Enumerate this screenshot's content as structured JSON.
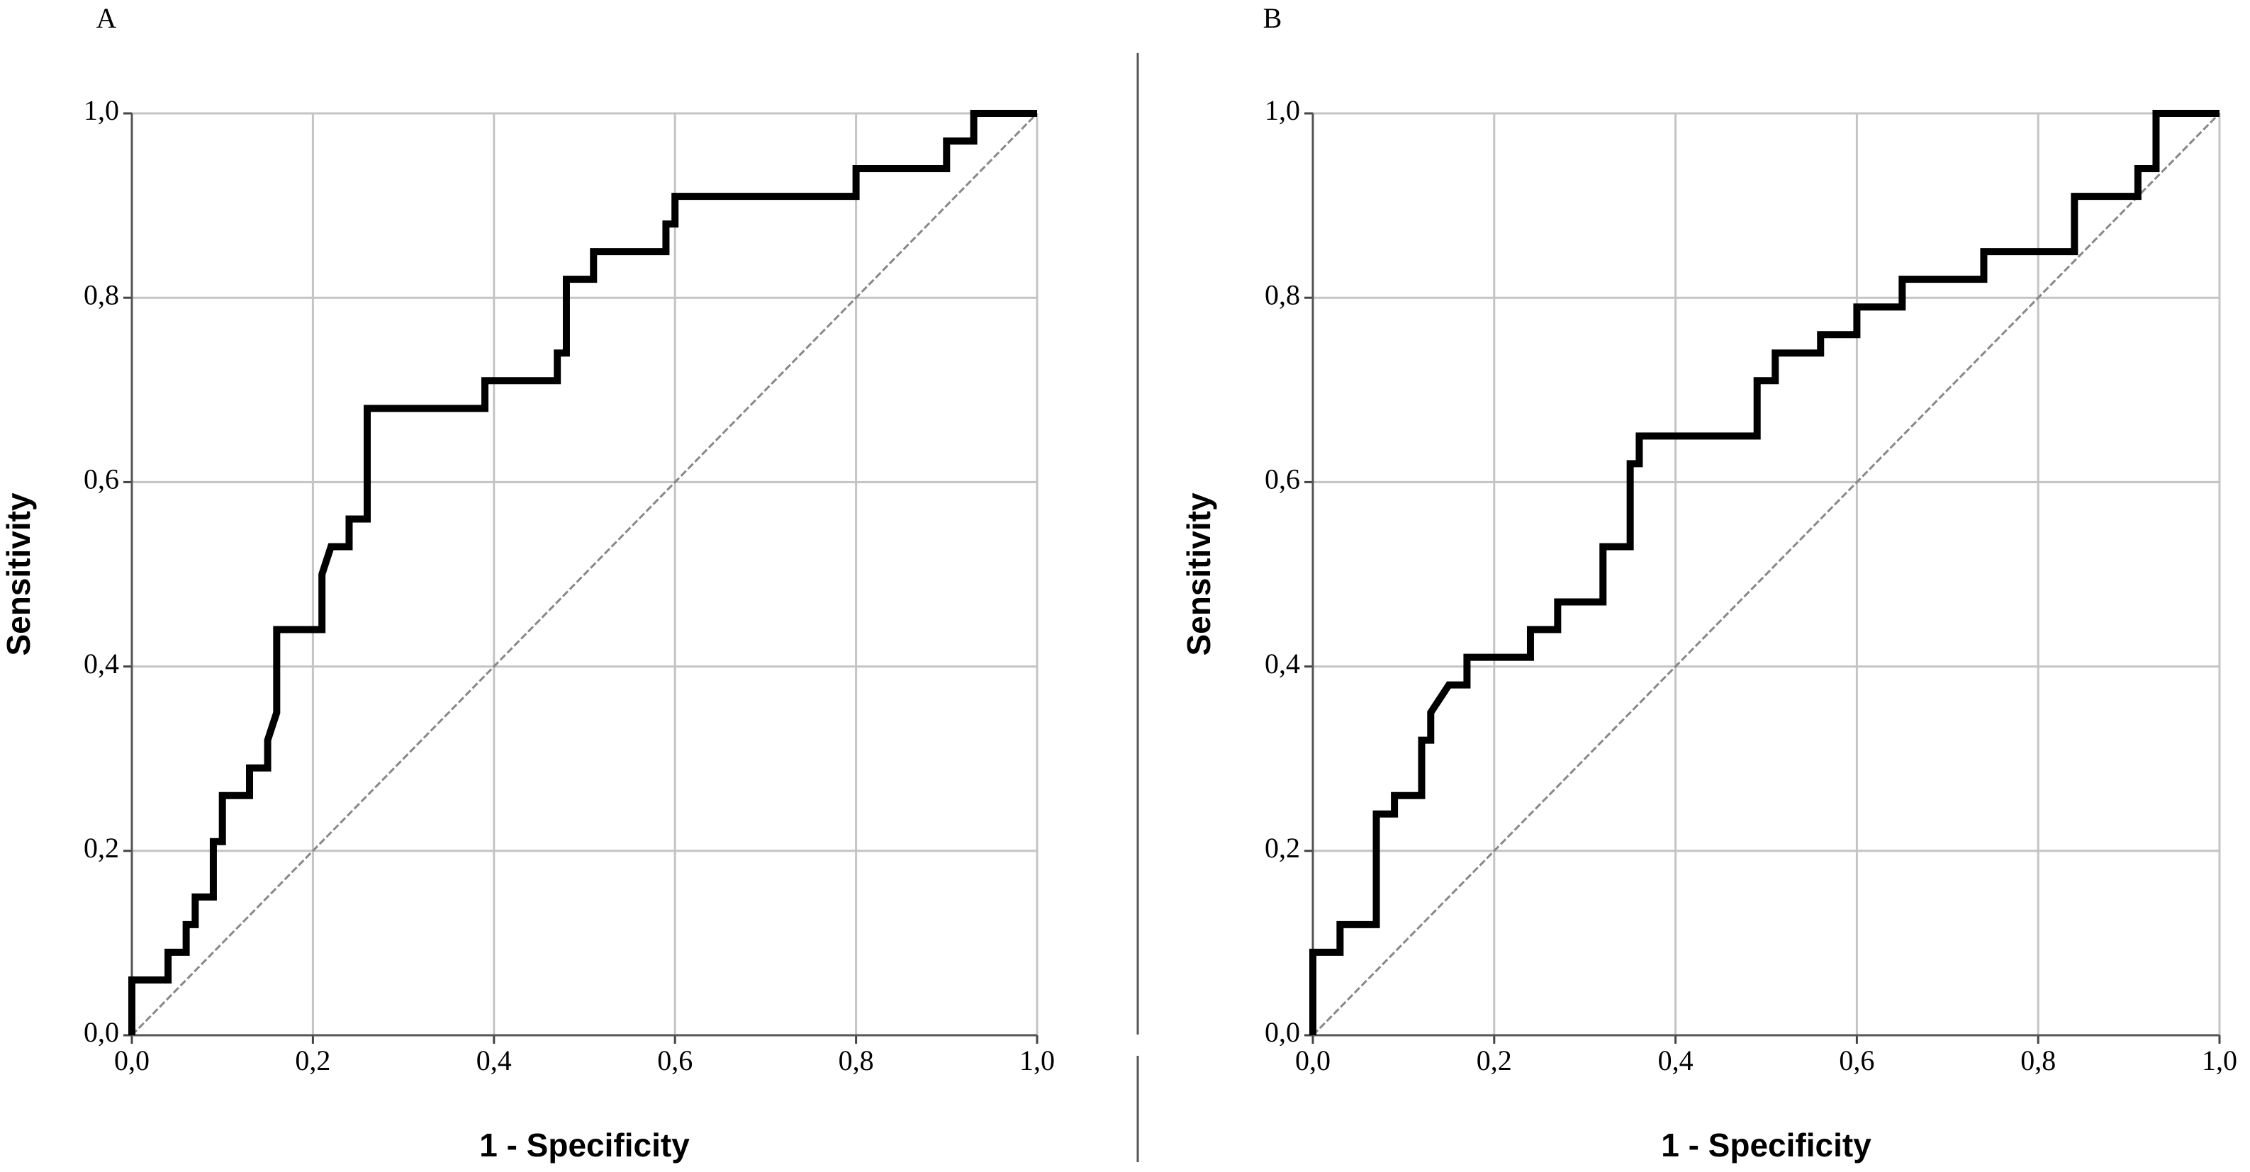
{
  "chart_data": [
    {
      "type": "line",
      "title": "A",
      "x_label": "1 - Specificity",
      "y_label": "Sensitivity",
      "x": [
        0,
        0,
        0.04,
        0.04,
        0.06,
        0.06,
        0.07,
        0.07,
        0.09,
        0.09,
        0.1,
        0.1,
        0.13,
        0.13,
        0.15,
        0.15,
        0.16,
        0.16,
        0.21,
        0.21,
        0.22,
        0.24,
        0.24,
        0.26,
        0.26,
        0.39,
        0.39,
        0.47,
        0.47,
        0.48,
        0.48,
        0.51,
        0.51,
        0.59,
        0.59,
        0.6,
        0.6,
        0.8,
        0.8,
        0.9,
        0.9,
        0.93,
        0.93,
        1
      ],
      "series": [
        {
          "color": "#000000",
          "values": [
            0,
            0.06,
            0.06,
            0.09,
            0.09,
            0.12,
            0.12,
            0.15,
            0.15,
            0.21,
            0.21,
            0.26,
            0.26,
            0.29,
            0.29,
            0.32,
            0.35,
            0.44,
            0.44,
            0.5,
            0.53,
            0.53,
            0.56,
            0.56,
            0.68,
            0.68,
            0.71,
            0.71,
            0.74,
            0.74,
            0.82,
            0.82,
            0.85,
            0.85,
            0.88,
            0.88,
            0.91,
            0.91,
            0.94,
            0.94,
            0.97,
            0.97,
            1,
            1
          ]
        }
      ],
      "xlim": [
        0,
        1
      ],
      "ylim": [
        0,
        1
      ],
      "xticks": [
        {
          "value": 0,
          "label": "0,0"
        },
        {
          "value": 0.2,
          "label": "0,2"
        },
        {
          "value": 0.4,
          "label": "0,4"
        },
        {
          "value": 0.6,
          "label": "0,6"
        },
        {
          "value": 0.8,
          "label": "0,8"
        },
        {
          "value": 1,
          "label": "1,0"
        }
      ],
      "yticks": [
        {
          "value": 0,
          "label": "0,0"
        },
        {
          "value": 0.2,
          "label": "0,2"
        },
        {
          "value": 0.4,
          "label": "0,4"
        },
        {
          "value": 0.6,
          "label": "0,6"
        },
        {
          "value": 0.8,
          "label": "0,8"
        },
        {
          "value": 1,
          "label": "1,0"
        }
      ],
      "grid": true,
      "diagonal": true
    },
    {
      "type": "line",
      "title": "B",
      "x_label": "1 - Specificity",
      "y_label": "Sensitivity",
      "x": [
        0,
        0,
        0.03,
        0.03,
        0.07,
        0.07,
        0.09,
        0.09,
        0.12,
        0.12,
        0.13,
        0.13,
        0.15,
        0.17,
        0.17,
        0.24,
        0.24,
        0.27,
        0.27,
        0.32,
        0.32,
        0.35,
        0.35,
        0.36,
        0.36,
        0.49,
        0.49,
        0.51,
        0.51,
        0.56,
        0.56,
        0.6,
        0.6,
        0.65,
        0.65,
        0.74,
        0.74,
        0.84,
        0.84,
        0.91,
        0.91,
        0.93,
        0.93,
        1
      ],
      "series": [
        {
          "color": "#000000",
          "values": [
            0,
            0.09,
            0.09,
            0.12,
            0.12,
            0.24,
            0.24,
            0.26,
            0.26,
            0.32,
            0.32,
            0.35,
            0.38,
            0.38,
            0.41,
            0.41,
            0.44,
            0.44,
            0.47,
            0.47,
            0.53,
            0.53,
            0.62,
            0.62,
            0.65,
            0.65,
            0.71,
            0.71,
            0.74,
            0.74,
            0.76,
            0.76,
            0.79,
            0.79,
            0.82,
            0.82,
            0.85,
            0.85,
            0.91,
            0.91,
            0.94,
            0.94,
            1,
            1
          ]
        }
      ],
      "xlim": [
        0,
        1
      ],
      "ylim": [
        0,
        1
      ],
      "xticks": [
        {
          "value": 0,
          "label": "0,0"
        },
        {
          "value": 0.2,
          "label": "0,2"
        },
        {
          "value": 0.4,
          "label": "0,4"
        },
        {
          "value": 0.6,
          "label": "0,6"
        },
        {
          "value": 0.8,
          "label": "0,8"
        },
        {
          "value": 1,
          "label": "1,0"
        }
      ],
      "yticks": [
        {
          "value": 0,
          "label": "0,0"
        },
        {
          "value": 0.2,
          "label": "0,2"
        },
        {
          "value": 0.4,
          "label": "0,4"
        },
        {
          "value": 0.6,
          "label": "0,6"
        },
        {
          "value": 0.8,
          "label": "0,8"
        },
        {
          "value": 1,
          "label": "1,0"
        }
      ],
      "grid": true,
      "diagonal": true
    }
  ]
}
